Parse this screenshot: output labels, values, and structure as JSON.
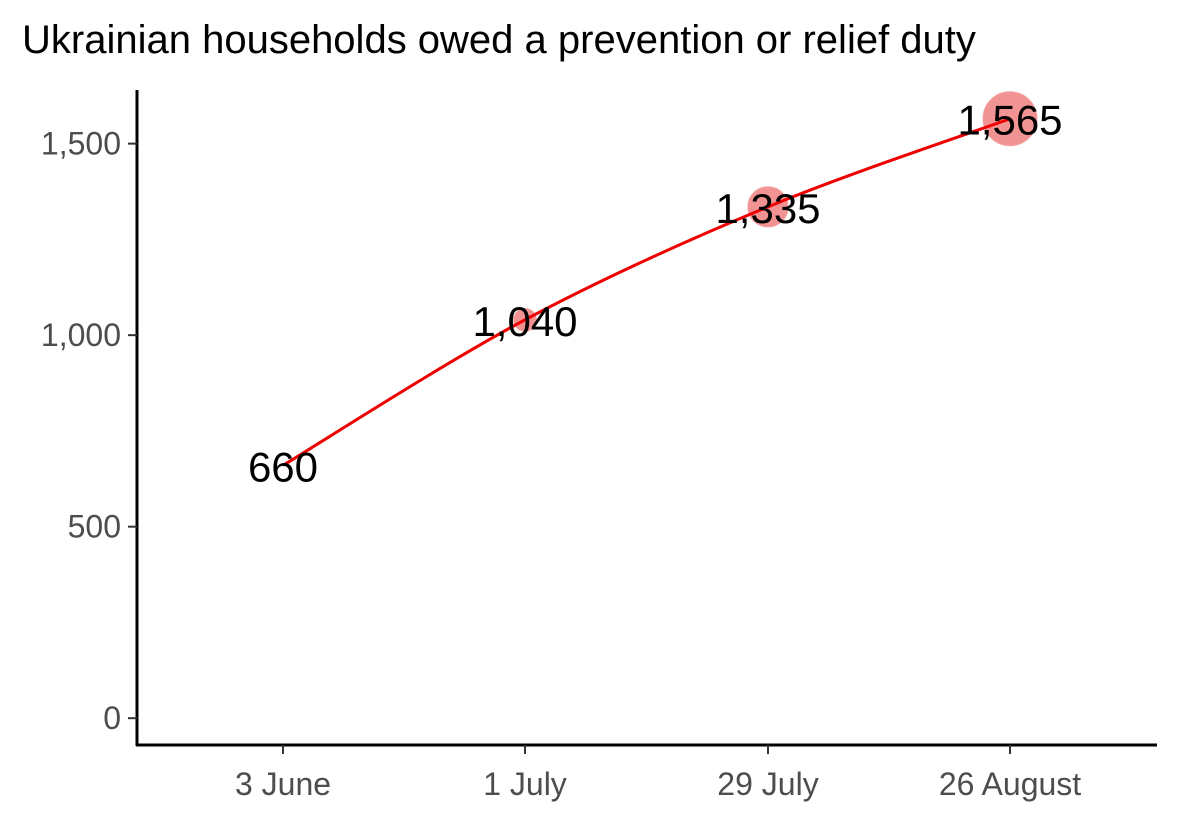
{
  "chart_data": {
    "type": "line",
    "title": "Ukrainian households owed a prevention or relief duty",
    "xlabel": "",
    "ylabel": "",
    "categories": [
      "3 June",
      "1 July",
      "29 July",
      "26 August"
    ],
    "values": [
      660,
      1040,
      1335,
      1565
    ],
    "data_labels": [
      "660",
      "1,040",
      "1,335",
      "1,565"
    ],
    "y_ticks": [
      0,
      500,
      1000,
      1500
    ],
    "y_tick_labels": [
      "0",
      "500",
      "1,000",
      "1,500"
    ],
    "ylim": [
      -70,
      1640
    ],
    "grid": false,
    "legend": "none",
    "line_color": "#ee0000",
    "marker_color": "#f08080",
    "marker_size_scaled_by_value": true
  }
}
